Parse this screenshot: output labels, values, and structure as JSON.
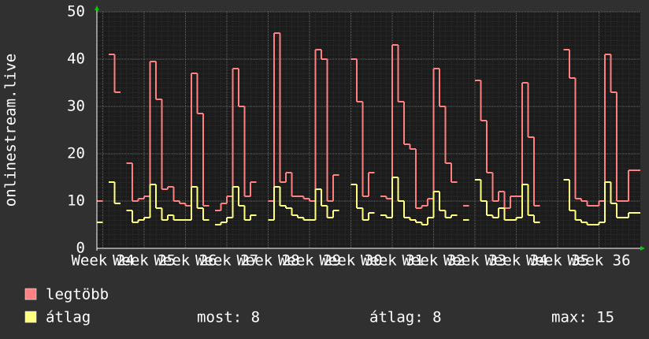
{
  "chart_data": {
    "type": "line",
    "step": true,
    "y_label": "onlinestream.live",
    "x": [
      0,
      1,
      2,
      3,
      4,
      5,
      6,
      7,
      8,
      9,
      10,
      11,
      12,
      13,
      14,
      15,
      16,
      17,
      18,
      19,
      20,
      21,
      22,
      23,
      24,
      25,
      26,
      27,
      28,
      29,
      30,
      31,
      32,
      33,
      34,
      35,
      36,
      37,
      38,
      39,
      40,
      41,
      42,
      43,
      44,
      45,
      46,
      47,
      48,
      49,
      50,
      51,
      52,
      53,
      54,
      55,
      56,
      57,
      58,
      59,
      60,
      61,
      62,
      63,
      64,
      65,
      66,
      67,
      68,
      69,
      70,
      71,
      72,
      73,
      74,
      75,
      76,
      77,
      78,
      79,
      80,
      81,
      82,
      83,
      84,
      85,
      86,
      87,
      88,
      89,
      90,
      91
    ],
    "series": [
      {
        "name": "legtöbb",
        "color": "#ff8080",
        "values": [
          10,
          null,
          41,
          33,
          null,
          18,
          10,
          10.5,
          11,
          39.5,
          31.5,
          12.5,
          13,
          10,
          9.5,
          9,
          37,
          28.5,
          9,
          null,
          8,
          9.5,
          11,
          38,
          30,
          11,
          14,
          null,
          null,
          10,
          45.5,
          14,
          16,
          11,
          11,
          10.5,
          10,
          42,
          40,
          10,
          15.5,
          null,
          null,
          40,
          31,
          11,
          16,
          null,
          11,
          10.5,
          43,
          31,
          22,
          21,
          8.5,
          9,
          10.5,
          38,
          30,
          18,
          14,
          null,
          9,
          null,
          35.5,
          27,
          16,
          10,
          12,
          8.5,
          11,
          11,
          35,
          23.5,
          9,
          null,
          null,
          null,
          null,
          42,
          36,
          10.5,
          10,
          9,
          9,
          10,
          41,
          33,
          10,
          10,
          16.5,
          16.5
        ]
      },
      {
        "name": "átlag",
        "color": "#ffff80",
        "values": [
          5.5,
          null,
          14,
          9.5,
          null,
          8,
          5.5,
          6,
          6.5,
          13.5,
          8.5,
          6,
          7,
          6,
          6,
          6,
          13,
          8.5,
          6,
          null,
          5,
          5.5,
          6.5,
          13,
          9,
          6,
          7,
          null,
          null,
          6,
          13,
          9,
          8.5,
          7,
          6.5,
          6,
          6,
          12.5,
          9,
          6.5,
          8,
          null,
          null,
          13.5,
          8.5,
          6,
          7.5,
          null,
          7,
          6.5,
          15,
          10,
          6.5,
          6,
          5.5,
          5,
          6.5,
          12,
          8,
          6.5,
          7,
          null,
          6,
          null,
          14.5,
          10,
          7,
          6.5,
          8.5,
          6,
          6,
          6.5,
          13.5,
          7,
          5.5,
          null,
          null,
          null,
          null,
          14.5,
          8,
          6,
          5.5,
          5,
          5,
          5.5,
          14,
          9.5,
          6.5,
          6.5,
          7.5,
          7.5
        ]
      }
    ],
    "xlim": [
      0,
      92
    ],
    "xticks": [
      {
        "value": 1,
        "label": "Week 24"
      },
      {
        "value": 8,
        "label": "Week 25"
      },
      {
        "value": 15,
        "label": "Week 26"
      },
      {
        "value": 22,
        "label": "Week 27"
      },
      {
        "value": 29,
        "label": "Week 28"
      },
      {
        "value": 36,
        "label": "Week 29"
      },
      {
        "value": 43,
        "label": "Week 30"
      },
      {
        "value": 50,
        "label": "Week 31"
      },
      {
        "value": 57,
        "label": "Week 32"
      },
      {
        "value": 64,
        "label": "Week 33"
      },
      {
        "value": 71,
        "label": "Week 34"
      },
      {
        "value": 78,
        "label": "Week 35"
      },
      {
        "value": 85,
        "label": "Week 36"
      }
    ],
    "ylim": [
      0,
      50
    ],
    "yticks": [
      0,
      10,
      20,
      30,
      40,
      50
    ],
    "grid": true,
    "legend": "bottom",
    "stats": [
      "most: 8",
      "átlag: 8",
      "max: 15"
    ]
  }
}
